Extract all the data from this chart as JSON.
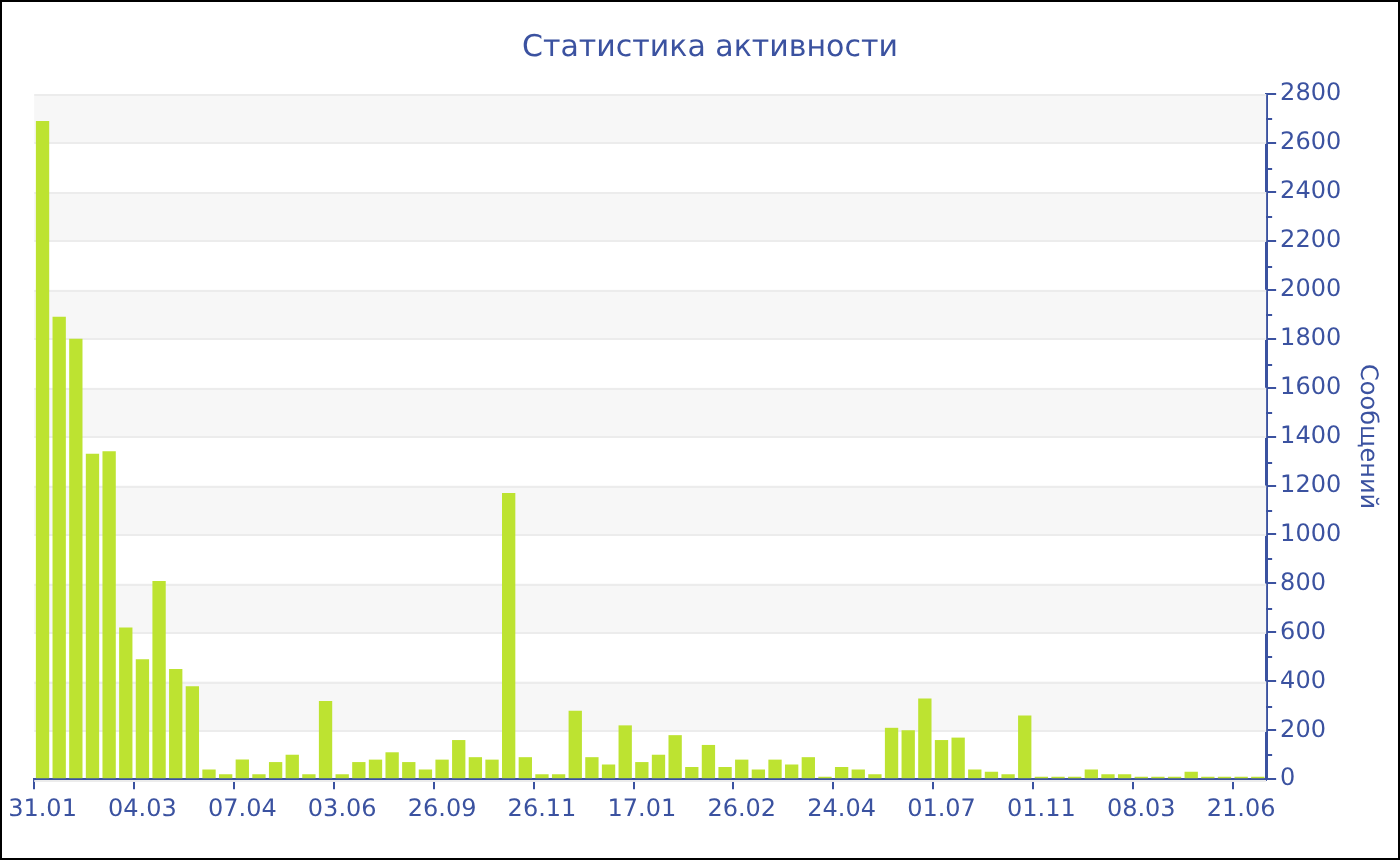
{
  "chart_data": {
    "type": "bar",
    "title": "Статистика активности",
    "ylabel": "Сообщений",
    "categories": [
      "31.01",
      null,
      null,
      null,
      null,
      null,
      "04.03",
      null,
      null,
      null,
      null,
      null,
      "07.04",
      null,
      null,
      null,
      null,
      null,
      "03.06",
      null,
      null,
      null,
      null,
      null,
      "26.09",
      null,
      null,
      null,
      null,
      null,
      "26.11",
      null,
      null,
      null,
      null,
      null,
      "17.01",
      null,
      null,
      null,
      null,
      null,
      "26.02",
      null,
      null,
      null,
      null,
      null,
      "24.04",
      null,
      null,
      null,
      null,
      null,
      "01.07",
      null,
      null,
      null,
      null,
      null,
      "01.11",
      null,
      null,
      null,
      null,
      null,
      "08.03",
      null,
      null,
      null,
      null,
      null,
      "21.06",
      null
    ],
    "values": [
      2690,
      1890,
      1800,
      1330,
      1340,
      620,
      490,
      810,
      450,
      380,
      40,
      20,
      80,
      20,
      70,
      100,
      20,
      320,
      20,
      70,
      80,
      110,
      70,
      40,
      80,
      160,
      90,
      80,
      1170,
      90,
      20,
      20,
      280,
      90,
      60,
      220,
      70,
      100,
      180,
      50,
      140,
      50,
      80,
      40,
      80,
      60,
      90,
      10,
      50,
      40,
      20,
      210,
      200,
      330,
      160,
      170,
      40,
      30,
      20,
      260,
      10,
      10,
      10,
      40,
      20,
      20,
      10,
      10,
      10,
      30,
      10,
      10,
      10,
      10
    ],
    "color": "#bde331",
    "ylim": [
      0,
      2800
    ],
    "yticks": [
      0,
      200,
      400,
      600,
      800,
      1000,
      1200,
      1400,
      1600,
      1800,
      2000,
      2200,
      2400,
      2600,
      2800
    ],
    "grid": "y",
    "legend": false
  }
}
